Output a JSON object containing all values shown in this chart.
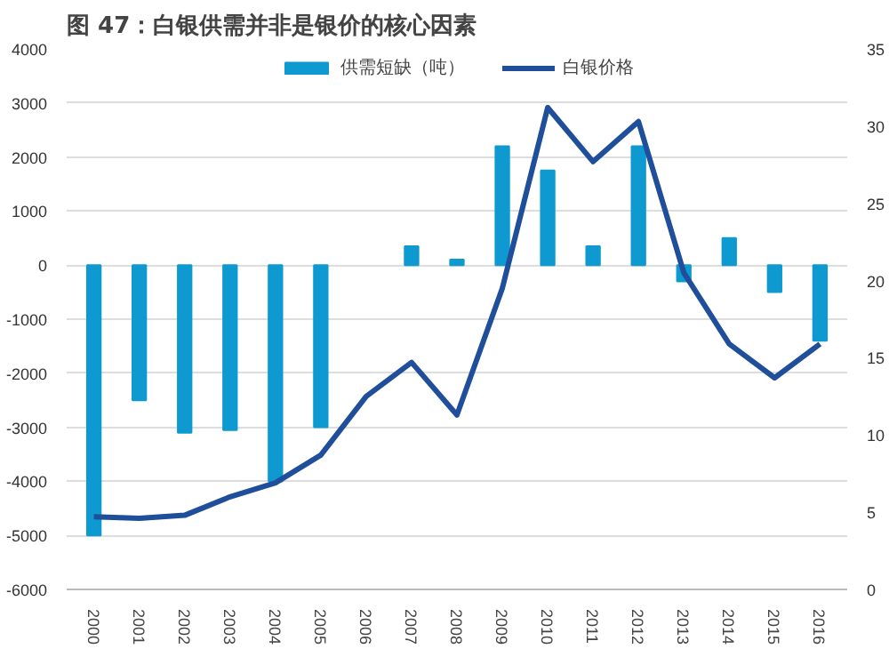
{
  "chart_data": {
    "type": "bar",
    "title": "图 47：白银供需并非是银价的核心因素",
    "categories": [
      "2000",
      "2001",
      "2002",
      "2003",
      "2004",
      "2005",
      "2006",
      "2007",
      "2008",
      "2009",
      "2010",
      "2011",
      "2012",
      "2013",
      "2014",
      "2015",
      "2016"
    ],
    "series": [
      {
        "name": "供需短缺（吨）",
        "color": "#0e9ad0",
        "values": [
          -5000,
          -2500,
          -3100,
          -3050,
          -4000,
          -3000,
          null,
          350,
          100,
          2200,
          1750,
          350,
          2200,
          -300,
          500,
          -500,
          -1400
        ]
      },
      {
        "name": "白银价格",
        "type": "line",
        "axis": "y2",
        "color": "#1f4e9a",
        "values": [
          4.7,
          4.6,
          4.8,
          6.0,
          6.9,
          8.7,
          12.5,
          14.7,
          11.3,
          19.5,
          31.2,
          27.7,
          30.3,
          20.5,
          15.9,
          13.7,
          15.9
        ]
      }
    ],
    "ylim": [
      -6000,
      4000
    ],
    "yticks": [
      -6000,
      -5000,
      -4000,
      -3000,
      -2000,
      -1000,
      0,
      1000,
      2000,
      3000,
      4000
    ],
    "y2lim": [
      0,
      35
    ],
    "y2ticks": [
      0,
      5,
      10,
      15,
      20,
      25,
      30,
      35
    ],
    "grid": "y",
    "legend": "top",
    "marker": "none",
    "line_style": "solid"
  }
}
